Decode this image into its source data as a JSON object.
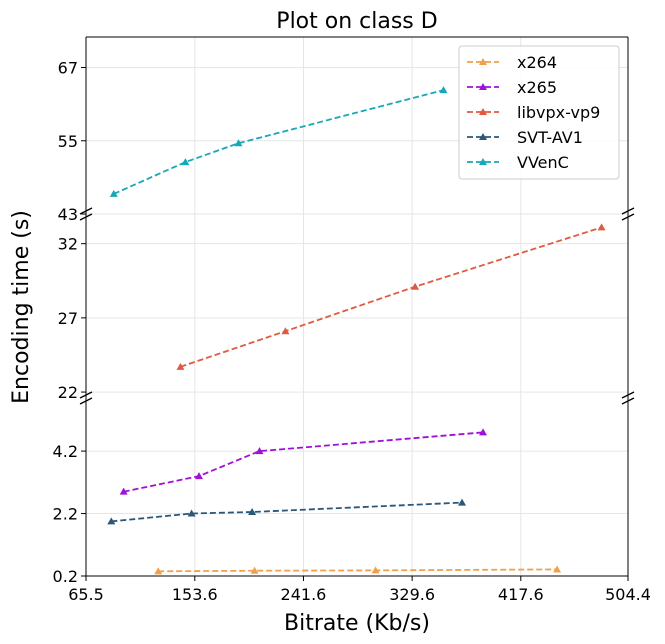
{
  "chart_data": {
    "type": "line",
    "title": "Plot on class D",
    "xlabel": "Bitrate (Kb/s)",
    "ylabel": "Encoding time (s)",
    "grid": true,
    "legend_position": "top-right",
    "xlim": [
      65.5,
      504.4
    ],
    "x_ticks": [
      "65.5",
      "153.6",
      "241.6",
      "329.6",
      "417.6",
      "504.4"
    ],
    "x_tick_values": [
      65.5,
      153.6,
      241.6,
      329.6,
      417.6,
      504.4
    ],
    "panels": [
      {
        "ylim": [
          43,
          72
        ],
        "y_ticks": [
          "43",
          "55",
          "67"
        ],
        "y_tick_values": [
          43,
          55,
          67
        ]
      },
      {
        "ylim": [
          21.6,
          34
        ],
        "y_ticks": [
          "22",
          "27",
          "32"
        ],
        "y_tick_values": [
          22,
          27,
          32
        ]
      },
      {
        "ylim": [
          0.2,
          5.9
        ],
        "y_ticks": [
          "0.2",
          "2.2",
          "4.2"
        ],
        "y_tick_values": [
          0.2,
          2.2,
          4.2
        ]
      }
    ],
    "series": [
      {
        "name": "x264",
        "color": "#f0a04b",
        "panel": 2,
        "x": [
          124,
          202,
          300,
          447
        ],
        "y": [
          0.35,
          0.37,
          0.38,
          0.41
        ]
      },
      {
        "name": "x265",
        "color": "#a010d8",
        "panel": 2,
        "x": [
          96,
          157,
          206,
          387
        ],
        "y": [
          2.9,
          3.4,
          4.2,
          4.8
        ]
      },
      {
        "name": "libvpx-vp9",
        "color": "#e05a40",
        "panel": 1,
        "x": [
          142,
          227,
          332,
          483
        ],
        "y": [
          23.7,
          26.1,
          29.1,
          33.1
        ]
      },
      {
        "name": "SVT-AV1",
        "color": "#2b5878",
        "panel": 2,
        "x": [
          86,
          151,
          200,
          370
        ],
        "y": [
          1.95,
          2.2,
          2.25,
          2.55
        ]
      },
      {
        "name": "VVenC",
        "color": "#17a8b8",
        "panel": 0,
        "x": [
          88,
          146,
          189,
          355
        ],
        "y": [
          46.3,
          51.5,
          54.6,
          63.3
        ]
      }
    ]
  }
}
